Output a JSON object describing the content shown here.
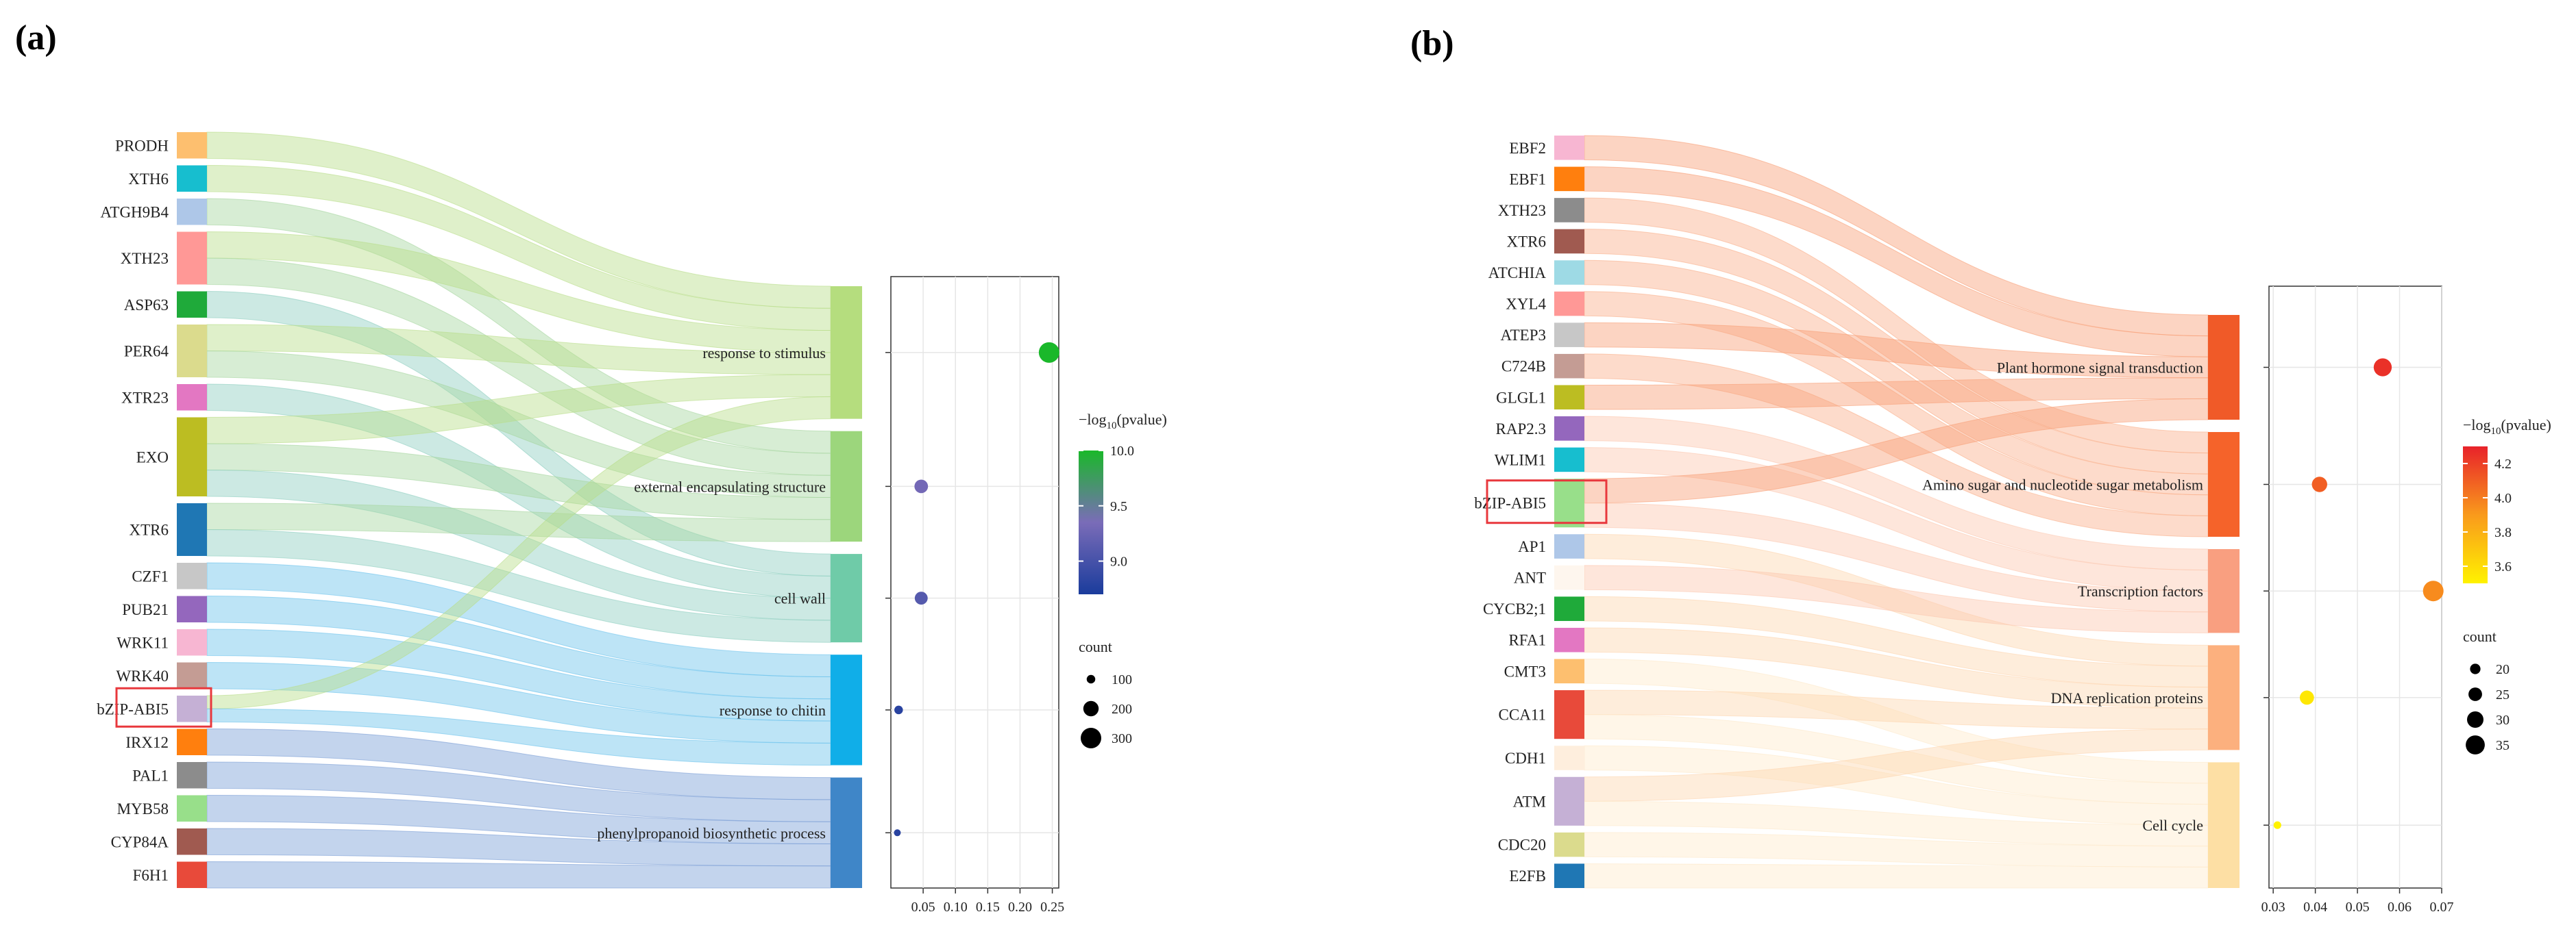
{
  "panels": [
    {
      "label": "(a)",
      "highlight_gene": "bZIP-ABI5",
      "chart_data": {
        "type": "sankey_dotplot",
        "genes": [
          "PRODH",
          "XTH6",
          "ATGH9B4",
          "XTH23",
          "ASP63",
          "PER64",
          "XTR23",
          "EXO",
          "XTR6",
          "CZF1",
          "PUB21",
          "WRK11",
          "WRK40",
          "bZIP-ABI5",
          "IRX12",
          "PAL1",
          "MYB58",
          "CYP84A",
          "F6H1"
        ],
        "gene_sizes": [
          1,
          1,
          1,
          2,
          1,
          2,
          1,
          3,
          2,
          1,
          1,
          1,
          1,
          1,
          1,
          1,
          1,
          1,
          1
        ],
        "gene_colors": [
          "#FDBF6F",
          "#17BECF",
          "#AEC7E8",
          "#FF9896",
          "#1FAA3A",
          "#DBDB8D",
          "#E377C2",
          "#BCBD22",
          "#1F77B4",
          "#C7C7C7",
          "#9467BD",
          "#F7B6D2",
          "#C49C94",
          "#C5B0D5",
          "#FF7F0E",
          "#8C8C8C",
          "#98DF8A",
          "#A05A50",
          "#E84A3A"
        ],
        "terms": [
          "response to stimulus",
          "external encapsulating structure",
          "cell wall",
          "response to chitin",
          "phenylpropanoid biosynthetic process"
        ],
        "term_colors": [
          "#B5DD7E",
          "#9CD67C",
          "#6FCBA8",
          "#10AEE8",
          "#3F86C8"
        ],
        "term_flow_colors": [
          "#B9DE8A",
          "#A6D6A0",
          "#8DCFC0",
          "#6CC3EC",
          "#7B9FD6"
        ],
        "links": [
          [
            0,
            0
          ],
          [
            1,
            0
          ],
          [
            2,
            1
          ],
          [
            3,
            0
          ],
          [
            3,
            1
          ],
          [
            4,
            2
          ],
          [
            5,
            0
          ],
          [
            5,
            1
          ],
          [
            6,
            2
          ],
          [
            7,
            0
          ],
          [
            7,
            1
          ],
          [
            7,
            2
          ],
          [
            8,
            1
          ],
          [
            8,
            2
          ],
          [
            9,
            3
          ],
          [
            10,
            3
          ],
          [
            11,
            3
          ],
          [
            12,
            3
          ],
          [
            13,
            0
          ],
          [
            13,
            3
          ],
          [
            14,
            4
          ],
          [
            15,
            4
          ],
          [
            16,
            4
          ],
          [
            17,
            4
          ],
          [
            18,
            4
          ]
        ],
        "dots": [
          {
            "term": "response to stimulus",
            "x": 0.245,
            "count": 300,
            "neglog10p": 10.0
          },
          {
            "term": "external encapsulating structure",
            "x": 0.047,
            "count": 170,
            "neglog10p": 9.3
          },
          {
            "term": "cell wall",
            "x": 0.047,
            "count": 160,
            "neglog10p": 9.1
          },
          {
            "term": "response to chitin",
            "x": 0.012,
            "count": 100,
            "neglog10p": 8.8
          },
          {
            "term": "phenylpropanoid biosynthetic process",
            "x": 0.01,
            "count": 80,
            "neglog10p": 8.8
          }
        ],
        "xlim": [
          0.0,
          0.26
        ],
        "xticks": [
          "0.05",
          "0.10",
          "0.15",
          "0.20",
          "0.25"
        ],
        "xtick_values": [
          0.05,
          0.1,
          0.15,
          0.2,
          0.25
        ],
        "color_scale": {
          "title": "−log",
          "title_sub": "10",
          "title_tail": "(pvalue)",
          "min": 8.7,
          "max": 10.0,
          "ticks": [
            "10.0",
            "9.5",
            "9.0"
          ],
          "tick_values": [
            10.0,
            9.5,
            9.0
          ],
          "low": "#1A3C9C",
          "mid": "#7A6CB8",
          "high": "#1AB82A"
        },
        "size_legend": {
          "title": "count",
          "labels": [
            "100",
            "200",
            "300"
          ],
          "values": [
            100,
            200,
            300
          ],
          "min": 80,
          "max": 300
        }
      }
    },
    {
      "label": "(b)",
      "highlight_gene": "bZIP-ABI5",
      "chart_data": {
        "type": "sankey_dotplot",
        "genes": [
          "EBF2",
          "EBF1",
          "XTH23",
          "XTR6",
          "ATCHIA",
          "XYL4",
          "ATEP3",
          "C724B",
          "GLGL1",
          "RAP2.3",
          "WLIM1",
          "bZIP-ABI5",
          "AP1",
          "ANT",
          "CYCB2;1",
          "RFA1",
          "CMT3",
          "CCA11",
          "CDH1",
          "ATM",
          "CDC20",
          "E2FB"
        ],
        "gene_sizes": [
          1,
          1,
          1,
          1,
          1,
          1,
          1,
          1,
          1,
          1,
          1,
          2,
          1,
          1,
          1,
          1,
          1,
          2,
          1,
          2,
          1,
          1
        ],
        "gene_colors": [
          "#F7B6D2",
          "#FF7F0E",
          "#8C8C8C",
          "#A05A50",
          "#9EDAE5",
          "#FF9896",
          "#C7C7C7",
          "#C49C94",
          "#BCBD22",
          "#9467BD",
          "#17BECF",
          "#98DF8A",
          "#AEC7E8",
          "#FEF6EE",
          "#1FAA3A",
          "#E377C2",
          "#FDBF6F",
          "#E84A3A",
          "#FEEEDD",
          "#C5B0D5",
          "#DBDB8D",
          "#1F77B4"
        ],
        "terms": [
          "Plant hormone signal transduction",
          "Amino sugar and nucleotide sugar metabolism",
          "Transcription factors",
          "DNA replication proteins",
          "Cell cycle"
        ],
        "term_colors": [
          "#F05A28",
          "#F5632A",
          "#F99F80",
          "#FCB07E",
          "#FDDFA4"
        ],
        "term_flow_colors": [
          "#F9A078",
          "#FAB08C",
          "#FCC8B0",
          "#FDD6B0",
          "#FEEACC"
        ],
        "links": [
          [
            0,
            0
          ],
          [
            1,
            0
          ],
          [
            2,
            1
          ],
          [
            3,
            1
          ],
          [
            4,
            1
          ],
          [
            5,
            1
          ],
          [
            6,
            0
          ],
          [
            7,
            1
          ],
          [
            8,
            0
          ],
          [
            9,
            2
          ],
          [
            10,
            2
          ],
          [
            11,
            0
          ],
          [
            11,
            2
          ],
          [
            12,
            3
          ],
          [
            13,
            2
          ],
          [
            14,
            3
          ],
          [
            15,
            3
          ],
          [
            16,
            4
          ],
          [
            17,
            3
          ],
          [
            17,
            4
          ],
          [
            18,
            4
          ],
          [
            19,
            3
          ],
          [
            19,
            4
          ],
          [
            20,
            4
          ],
          [
            21,
            4
          ]
        ],
        "dots": [
          {
            "term": "Plant hormone signal transduction",
            "x": 0.056,
            "count": 33,
            "neglog10p": 4.25
          },
          {
            "term": "Amino sugar and nucleotide sugar metabolism",
            "x": 0.041,
            "count": 28,
            "neglog10p": 4.1
          },
          {
            "term": "Transcription factors",
            "x": 0.068,
            "count": 38,
            "neglog10p": 3.95
          },
          {
            "term": "DNA replication proteins",
            "x": 0.038,
            "count": 26,
            "neglog10p": 3.55
          },
          {
            "term": "Cell cycle",
            "x": 0.031,
            "count": 16,
            "neglog10p": 3.5
          }
        ],
        "xlim": [
          0.029,
          0.07
        ],
        "xticks": [
          "0.03",
          "0.04",
          "0.05",
          "0.06",
          "0.07"
        ],
        "xtick_values": [
          0.03,
          0.04,
          0.05,
          0.06,
          0.07
        ],
        "color_scale": {
          "title": "−log",
          "title_sub": "10",
          "title_tail": "(pvalue)",
          "min": 3.5,
          "max": 4.3,
          "ticks": [
            "4.2",
            "4.0",
            "3.8",
            "3.6"
          ],
          "tick_values": [
            4.2,
            4.0,
            3.8,
            3.6
          ],
          "low": "#FFF200",
          "mid": "#F99A1C",
          "high": "#E8222A"
        },
        "size_legend": {
          "title": "count",
          "labels": [
            "20",
            "25",
            "30",
            "35"
          ],
          "values": [
            20,
            25,
            30,
            35
          ],
          "min": 15,
          "max": 38
        }
      }
    }
  ]
}
